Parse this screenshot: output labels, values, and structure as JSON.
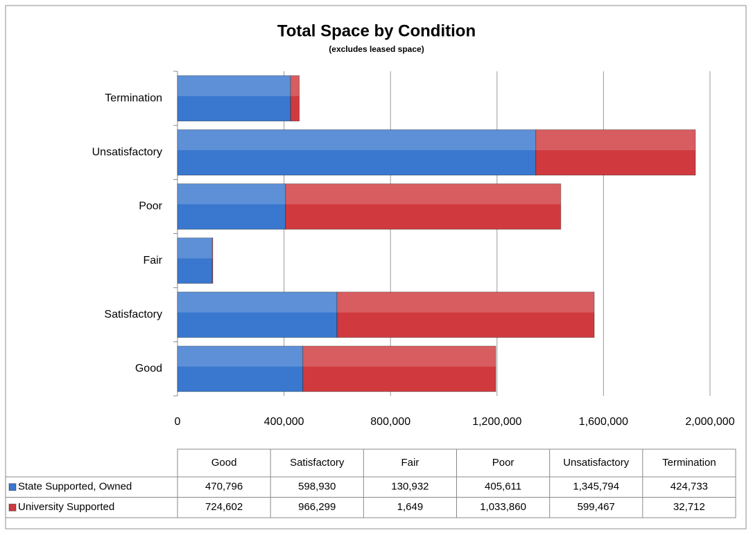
{
  "chart_data": {
    "type": "stacked_barh",
    "title": "Total Space by Condition",
    "subtitle": "(excludes leased space)",
    "categories": [
      "Good",
      "Satisfactory",
      "Fair",
      "Poor",
      "Unsatisfactory",
      "Termination"
    ],
    "series": [
      {
        "name": "State Supported, Owned",
        "color": "#3a78cf",
        "values": [
          470796,
          598930,
          130932,
          405611,
          1345794,
          424733
        ],
        "value_labels": [
          "470,796",
          "598,930",
          "130,932",
          "405,611",
          "1,345,794",
          "424,733"
        ]
      },
      {
        "name": "University Supported",
        "color": "#d03a3e",
        "values": [
          724602,
          966299,
          1649,
          1033860,
          599467,
          32712
        ],
        "value_labels": [
          "724,602",
          "966,299",
          "1,649",
          "1,033,860",
          "599,467",
          "32,712"
        ]
      }
    ],
    "xlim": [
      0,
      2000000
    ],
    "xticks": [
      0,
      {
        "value": 400000,
        "label": "400,000"
      },
      {
        "value": 800000,
        "label": "800,000"
      },
      {
        "value": 1200000,
        "label": "1,200,000"
      },
      {
        "value": 1600000,
        "label": "1,600,000"
      },
      {
        "value": 2000000,
        "label": "2,000,000"
      }
    ],
    "grid": true
  }
}
